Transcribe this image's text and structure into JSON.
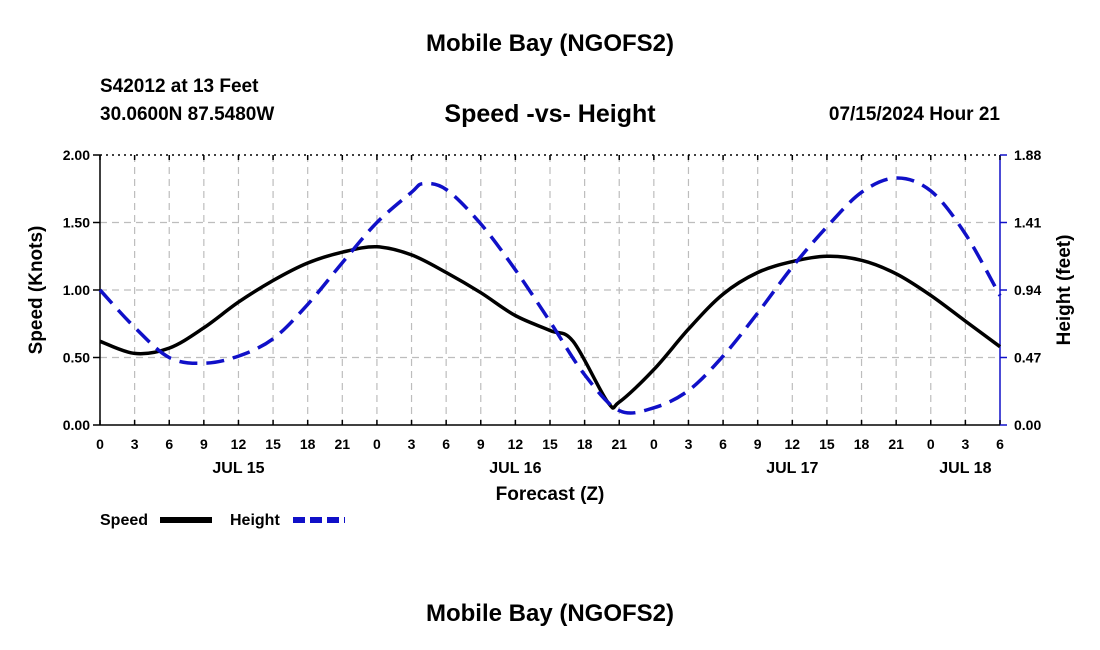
{
  "header": {
    "title": "Mobile Bay (NGOFS2)",
    "station": "S42012 at 13 Feet",
    "coords": "30.0600N  87.5480W",
    "datetime": "07/15/2024 Hour 21"
  },
  "footer": {
    "title": "Mobile Bay (NGOFS2)"
  },
  "chart_data": {
    "type": "line",
    "title": "Speed -vs- Height",
    "xlabel": "Forecast (Z)",
    "ylabel_left": "Speed (Knots)",
    "ylabel_right": "Height (feet)",
    "x_hours_range": [
      0,
      78
    ],
    "x_tick_labels": [
      "0",
      "3",
      "6",
      "9",
      "12",
      "15",
      "18",
      "21",
      "0",
      "3",
      "6",
      "9",
      "12",
      "15",
      "18",
      "21",
      "0",
      "3",
      "6",
      "9",
      "12",
      "15",
      "18",
      "21",
      "0",
      "3",
      "6"
    ],
    "x_day_labels": [
      {
        "label": "JUL 15",
        "hour": 12
      },
      {
        "label": "JUL 16",
        "hour": 36
      },
      {
        "label": "JUL 17",
        "hour": 60
      },
      {
        "label": "JUL 18",
        "hour": 75
      }
    ],
    "y_left": {
      "range": [
        0,
        2.0
      ],
      "ticks": [
        "0.00",
        "0.50",
        "1.00",
        "1.50",
        "2.00"
      ]
    },
    "y_right": {
      "range": [
        0,
        1.88
      ],
      "ticks": [
        "0.00",
        "0.47",
        "0.94",
        "1.41",
        "1.88"
      ]
    },
    "grid": true,
    "legend": [
      {
        "label": "Speed",
        "color": "#000000",
        "style": "solid"
      },
      {
        "label": "Height",
        "color": "#1010c8",
        "style": "dashed"
      }
    ],
    "series": [
      {
        "name": "Speed",
        "axis": "left",
        "color": "#000000",
        "style": "solid",
        "x": [
          0,
          3,
          6,
          9,
          12,
          15,
          18,
          21,
          24,
          27,
          30,
          33,
          36,
          39,
          41,
          44,
          45,
          48,
          51,
          54,
          57,
          60,
          63,
          66,
          69,
          72,
          75,
          78
        ],
        "y": [
          0.62,
          0.53,
          0.57,
          0.72,
          0.91,
          1.07,
          1.2,
          1.28,
          1.32,
          1.26,
          1.13,
          0.98,
          0.81,
          0.7,
          0.62,
          0.17,
          0.17,
          0.41,
          0.71,
          0.97,
          1.13,
          1.21,
          1.25,
          1.22,
          1.12,
          0.96,
          0.77,
          0.58
        ]
      },
      {
        "name": "Height",
        "axis": "right",
        "color": "#1010c8",
        "style": "dashed",
        "x": [
          0,
          3,
          6,
          9,
          12,
          15,
          18,
          21,
          24,
          27,
          28,
          30,
          33,
          36,
          39,
          42,
          45,
          48,
          51,
          54,
          57,
          60,
          63,
          66,
          69,
          72,
          75,
          78
        ],
        "y": [
          0.94,
          0.68,
          0.47,
          0.43,
          0.48,
          0.6,
          0.84,
          1.13,
          1.41,
          1.62,
          1.68,
          1.64,
          1.4,
          1.08,
          0.72,
          0.35,
          0.1,
          0.12,
          0.24,
          0.48,
          0.78,
          1.1,
          1.38,
          1.62,
          1.72,
          1.63,
          1.33,
          0.9
        ]
      }
    ]
  }
}
